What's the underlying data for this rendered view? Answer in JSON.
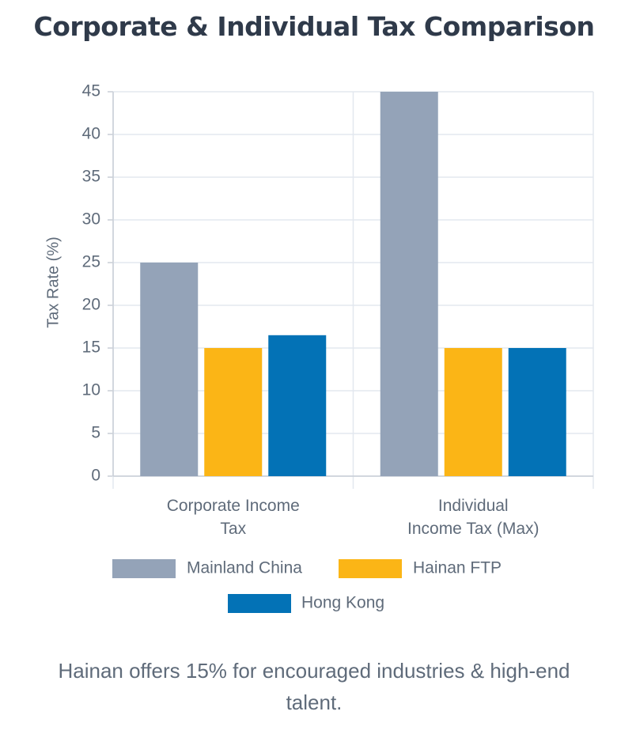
{
  "title": "Corporate & Individual Tax Comparison",
  "caption": "Hainan offers 15% for encouraged industries & high-end talent.",
  "chart_data": {
    "type": "bar",
    "title": "Corporate & Individual Tax Comparison",
    "ylabel": "Tax Rate (%)",
    "xlabel": "",
    "ylim": [
      0,
      45
    ],
    "yticks": [
      0,
      5,
      10,
      15,
      20,
      25,
      30,
      35,
      40,
      45
    ],
    "grid": true,
    "legend_position": "bottom",
    "categories": [
      [
        "Corporate Income",
        "Tax"
      ],
      [
        "Individual",
        "Income Tax (Max)"
      ]
    ],
    "series": [
      {
        "name": "Mainland China",
        "values": [
          25,
          45
        ],
        "color": "#94a3b8"
      },
      {
        "name": "Hainan FTP",
        "values": [
          15,
          15
        ],
        "color": "#fbb516"
      },
      {
        "name": "Hong Kong",
        "values": [
          16.5,
          15
        ],
        "color": "#0372b6"
      }
    ]
  }
}
